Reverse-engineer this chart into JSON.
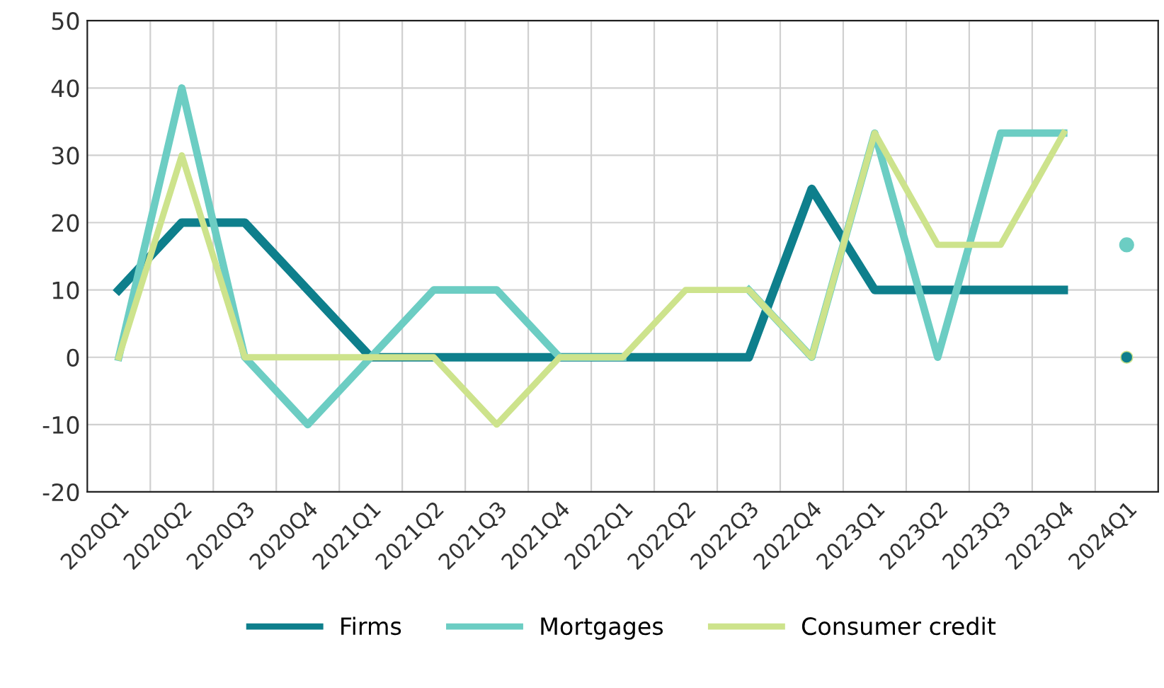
{
  "chart_data": {
    "type": "line",
    "categories": [
      "2020Q1",
      "2020Q2",
      "2020Q3",
      "2020Q4",
      "2021Q1",
      "2021Q2",
      "2021Q3",
      "2021Q4",
      "2022Q1",
      "2022Q2",
      "2022Q3",
      "2022Q4",
      "2023Q1",
      "2023Q2",
      "2023Q3",
      "2023Q4",
      "2024Q1"
    ],
    "series": [
      {
        "name": "Firms",
        "color": "#0e7f8c",
        "values": [
          10,
          20,
          20,
          10,
          0,
          0,
          0,
          0,
          0,
          0,
          0,
          25,
          10,
          10,
          10,
          10,
          null
        ]
      },
      {
        "name": "Mortgages",
        "color": "#6ccdc3",
        "values": [
          0,
          40,
          0,
          -10,
          0,
          10,
          10,
          0,
          0,
          null,
          10,
          0,
          33.3,
          0,
          33.3,
          33.3,
          null
        ]
      },
      {
        "name": "Consumer credit",
        "color": "#cde38c",
        "values": [
          0,
          30,
          0,
          0,
          0,
          0,
          -10,
          0,
          0,
          10,
          10,
          0,
          33.3,
          16.7,
          16.7,
          33.3,
          null
        ]
      },
      {
        "type": "scatter",
        "color": "#6ccdc3",
        "marker": "circle",
        "values": [
          null,
          null,
          null,
          null,
          null,
          null,
          null,
          null,
          null,
          null,
          null,
          null,
          null,
          null,
          null,
          null,
          16.7
        ]
      },
      {
        "type": "scatter",
        "color": "#cde38c",
        "marker": "circle",
        "values": [
          null,
          null,
          null,
          null,
          null,
          null,
          null,
          null,
          null,
          null,
          null,
          null,
          null,
          null,
          null,
          null,
          0
        ]
      },
      {
        "type": "scatter",
        "color": "#0e7f8c",
        "marker": "circle",
        "values": [
          null,
          null,
          null,
          null,
          null,
          null,
          null,
          null,
          null,
          null,
          null,
          null,
          null,
          null,
          null,
          null,
          0
        ]
      }
    ],
    "ylim": [
      -20,
      50
    ],
    "yticks": [
      -20,
      -10,
      0,
      10,
      20,
      30,
      40,
      50
    ],
    "grid": true,
    "legend": "bottom"
  }
}
